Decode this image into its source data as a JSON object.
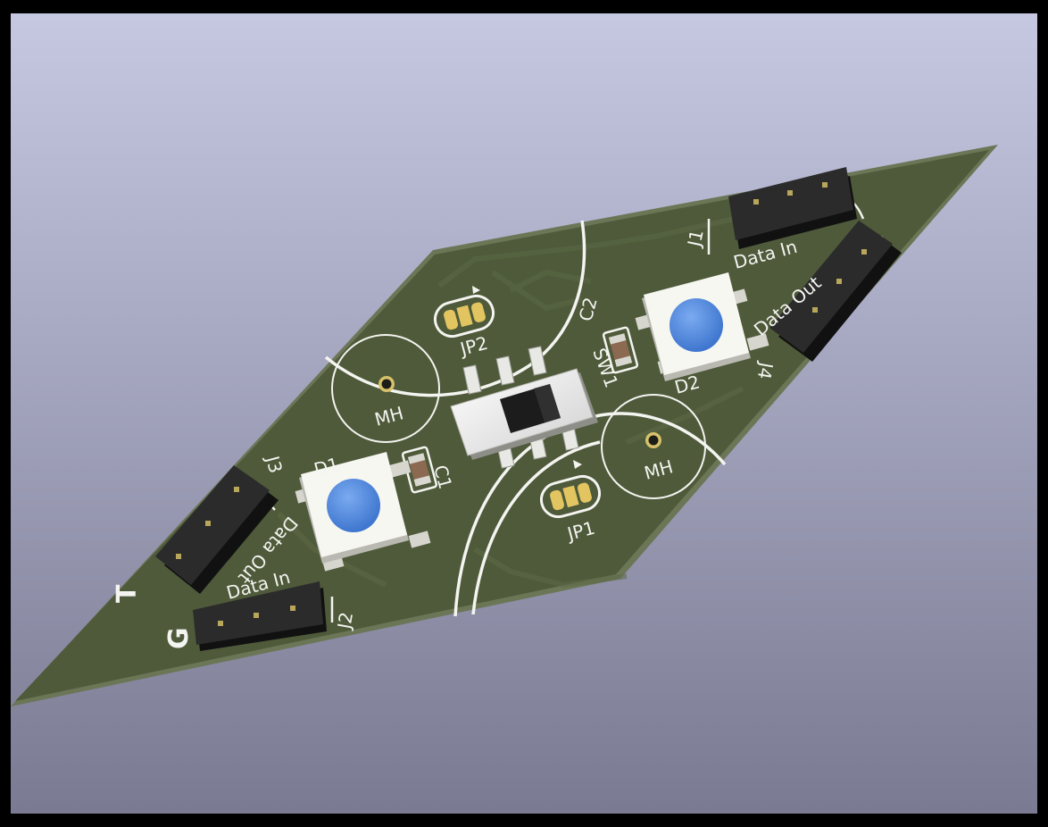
{
  "viewer": {
    "background_top": "#c6c8e2",
    "background_bottom": "#7a7a92",
    "frame_color": "#000000"
  },
  "board": {
    "soldermask_color": "#4e5a3a",
    "soldermask_dark": "#3e4a2e",
    "edge_color": "#6a7656",
    "silkscreen_color": "#f4f4f0",
    "pad_gold": "#e2c560",
    "led_lens_color": "#4b86e0"
  },
  "labels": {
    "j1": "J1",
    "j2": "J2",
    "j3": "J3",
    "j4": "J4",
    "d1": "D1",
    "d2": "D2",
    "c1": "C1",
    "c2": "C2",
    "sw1": "SW1",
    "jp1": "JP1",
    "jp2": "JP2",
    "mh_left": "MH",
    "mh_right": "MH",
    "data_in_j1": "Data In",
    "data_out_j4": "Data Out",
    "data_out_j3": "Data Out",
    "data_in_j2": "Data In",
    "mark_t": "T",
    "mark_g": "G"
  }
}
